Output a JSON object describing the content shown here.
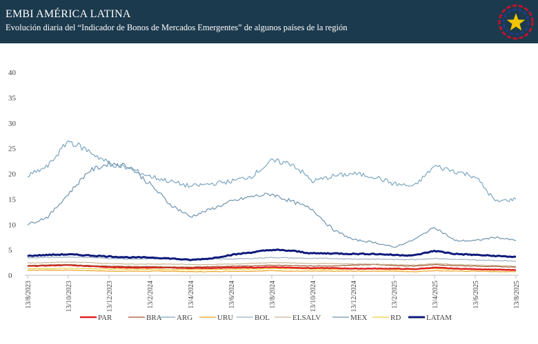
{
  "header": {
    "title": "EMBI AMÉRICA LATINA",
    "subtitle": "Evolución diaria del “Indicador de Bonos de Mercados Emergentes” de algunos países de la región"
  },
  "logo": {
    "name": "paraguay-star-emblem-icon",
    "colors": [
      "#c8102e",
      "#1f3b8c",
      "#f2c400"
    ]
  },
  "chart_data": {
    "type": "line",
    "xlabel": "",
    "ylabel": "",
    "ylim": [
      0,
      40
    ],
    "yticks": [
      0,
      5,
      10,
      15,
      20,
      25,
      30,
      35,
      40
    ],
    "xticks": [
      "13/8/2023",
      "13/10/2023",
      "13/12/2023",
      "13/2/2024",
      "13/4/2024",
      "13/6/2024",
      "13/8/2024",
      "13/10/2024",
      "13/12/2024",
      "13/2/2025",
      "13/4/2025",
      "13/6/2025",
      "13/8/2025"
    ],
    "x": [
      "13/8/2023",
      "13/9/2023",
      "13/10/2023",
      "13/11/2023",
      "13/12/2023",
      "13/1/2024",
      "13/2/2024",
      "13/3/2024",
      "13/4/2024",
      "13/5/2024",
      "13/6/2024",
      "13/7/2024",
      "13/8/2024",
      "13/9/2024",
      "13/10/2024",
      "13/11/2024",
      "13/12/2024",
      "13/1/2025",
      "13/2/2025",
      "13/3/2025",
      "13/4/2025",
      "13/5/2025",
      "13/6/2025",
      "13/7/2025",
      "13/8/2025"
    ],
    "grid": false,
    "legend_position": "bottom",
    "series": [
      {
        "name": "PAR",
        "color": "#e02020",
        "width": 2.5,
        "values": [
          1.8,
          1.9,
          2.0,
          1.8,
          1.6,
          1.5,
          1.5,
          1.5,
          1.4,
          1.4,
          1.5,
          1.5,
          1.6,
          1.5,
          1.4,
          1.4,
          1.3,
          1.3,
          1.3,
          1.2,
          1.5,
          1.3,
          1.2,
          1.1,
          1.0
        ]
      },
      {
        "name": "BRA",
        "color": "#a0522d",
        "width": 1.2,
        "values": [
          1.9,
          2.0,
          2.1,
          1.9,
          1.8,
          1.7,
          1.7,
          1.6,
          1.6,
          1.7,
          1.8,
          1.8,
          2.0,
          1.9,
          1.8,
          1.8,
          2.0,
          2.1,
          1.9,
          1.8,
          2.1,
          1.9,
          1.8,
          1.7,
          1.6
        ]
      },
      {
        "name": "ARG",
        "color": "#7aa5bf",
        "width": 1.2,
        "values": [
          19.5,
          21.5,
          26.5,
          24.5,
          22.0,
          21.0,
          19.5,
          18.5,
          17.5,
          18.0,
          18.5,
          19.5,
          22.5,
          22.0,
          18.5,
          19.5,
          20.0,
          19.5,
          18.0,
          17.5,
          21.5,
          20.5,
          19.5,
          14.5,
          15.0
        ]
      },
      {
        "name": "URU",
        "color": "#e8a020",
        "width": 1.2,
        "values": [
          1.0,
          1.0,
          1.0,
          0.9,
          0.8,
          0.8,
          0.8,
          0.8,
          0.7,
          0.7,
          0.8,
          0.8,
          0.9,
          0.8,
          0.8,
          0.8,
          0.8,
          0.8,
          0.8,
          0.7,
          0.9,
          0.8,
          0.8,
          0.7,
          0.7
        ]
      },
      {
        "name": "BOL",
        "color": "#9bb0bf",
        "width": 1.2,
        "values": [
          3.4,
          3.5,
          3.6,
          3.5,
          3.3,
          3.2,
          3.2,
          3.2,
          3.1,
          3.2,
          3.2,
          3.3,
          3.5,
          3.4,
          3.3,
          3.3,
          3.2,
          3.2,
          3.1,
          3.1,
          3.3,
          3.1,
          3.0,
          2.9,
          2.8
        ]
      },
      {
        "name": "ELSALV",
        "color": "#c9b590",
        "width": 1.2,
        "values": [
          2.4,
          2.5,
          2.6,
          2.5,
          2.3,
          2.2,
          2.2,
          2.2,
          2.1,
          2.1,
          2.2,
          2.3,
          2.5,
          2.4,
          2.3,
          2.3,
          2.2,
          2.2,
          2.1,
          2.0,
          2.3,
          2.1,
          2.0,
          1.9,
          1.8
        ]
      },
      {
        "name": "MEX",
        "color": "#6e93ad",
        "width": 1.2,
        "values": [
          10.0,
          11.5,
          16.0,
          20.5,
          22.0,
          21.5,
          18.0,
          14.0,
          11.5,
          13.0,
          14.5,
          15.5,
          16.0,
          14.5,
          13.0,
          9.0,
          7.0,
          6.5,
          5.5,
          7.0,
          9.5,
          6.8,
          6.8,
          7.5,
          6.8
        ]
      },
      {
        "name": "RD",
        "color": "#e8d040",
        "width": 1.2,
        "values": [
          1.3,
          1.3,
          1.4,
          1.3,
          1.2,
          1.2,
          1.2,
          1.1,
          1.1,
          1.1,
          1.2,
          1.2,
          1.3,
          1.3,
          1.2,
          1.2,
          1.2,
          1.2,
          1.1,
          1.1,
          1.3,
          1.2,
          1.1,
          1.0,
          1.0
        ]
      },
      {
        "name": "LATAM",
        "color": "#0d1a7a",
        "width": 3.0,
        "values": [
          3.8,
          4.0,
          4.1,
          3.9,
          3.7,
          3.5,
          3.5,
          3.3,
          3.0,
          3.3,
          4.0,
          4.5,
          5.0,
          4.8,
          4.3,
          4.3,
          4.2,
          4.2,
          4.0,
          3.9,
          4.8,
          4.2,
          4.0,
          3.8,
          3.6
        ]
      }
    ]
  }
}
